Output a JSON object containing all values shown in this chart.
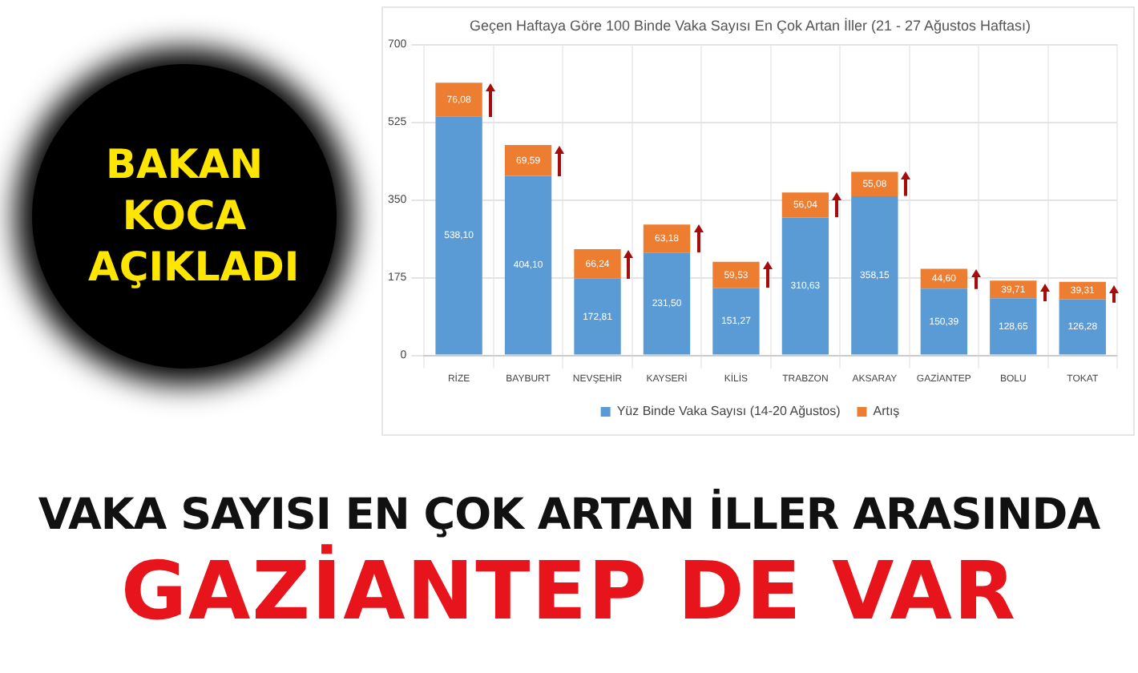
{
  "chart_data": {
    "type": "bar",
    "title": "Geçen Haftaya Göre 100 Binde Vaka Sayısı En Çok Artan İller (21 - 27 Ağustos Haftası)",
    "categories": [
      "RİZE",
      "BAYBURT",
      "NEVŞEHİR",
      "KAYSERİ",
      "KİLİS",
      "TRABZON",
      "AKSARAY",
      "GAZİANTEP",
      "BOLU",
      "TOKAT"
    ],
    "stacked": true,
    "series": [
      {
        "name": "Yüz Binde Vaka Sayısı (14-20 Ağustos)",
        "color": "#5b9bd5",
        "values": [
          538.1,
          404.1,
          172.81,
          231.5,
          151.27,
          310.63,
          358.15,
          150.39,
          128.65,
          126.28
        ],
        "value_labels": [
          "538,10",
          "404,10",
          "172,81",
          "231,50",
          "151,27",
          "310,63",
          "358,15",
          "150,39",
          "128,65",
          "126,28"
        ]
      },
      {
        "name": "Artış",
        "color": "#ed7d31",
        "values": [
          76.08,
          69.59,
          66.24,
          63.18,
          59.53,
          56.04,
          55.08,
          44.6,
          39.71,
          39.31
        ],
        "value_labels": [
          "76,08",
          "69,59",
          "66,24",
          "63,18",
          "59,53",
          "56,04",
          "55,08",
          "44,60",
          "39,71",
          "39,31"
        ]
      }
    ],
    "ylim": [
      0,
      700
    ],
    "yticks": [
      0,
      175,
      350,
      525,
      700
    ],
    "grid": true,
    "legend": "bottom",
    "annotations": [
      "BAKAN KOCA AÇIKLADI",
      "VAKA SAYISI EN ÇOK ARTAN İLLER ARASINDA",
      "GAZİANTEP DE VAR"
    ]
  }
}
